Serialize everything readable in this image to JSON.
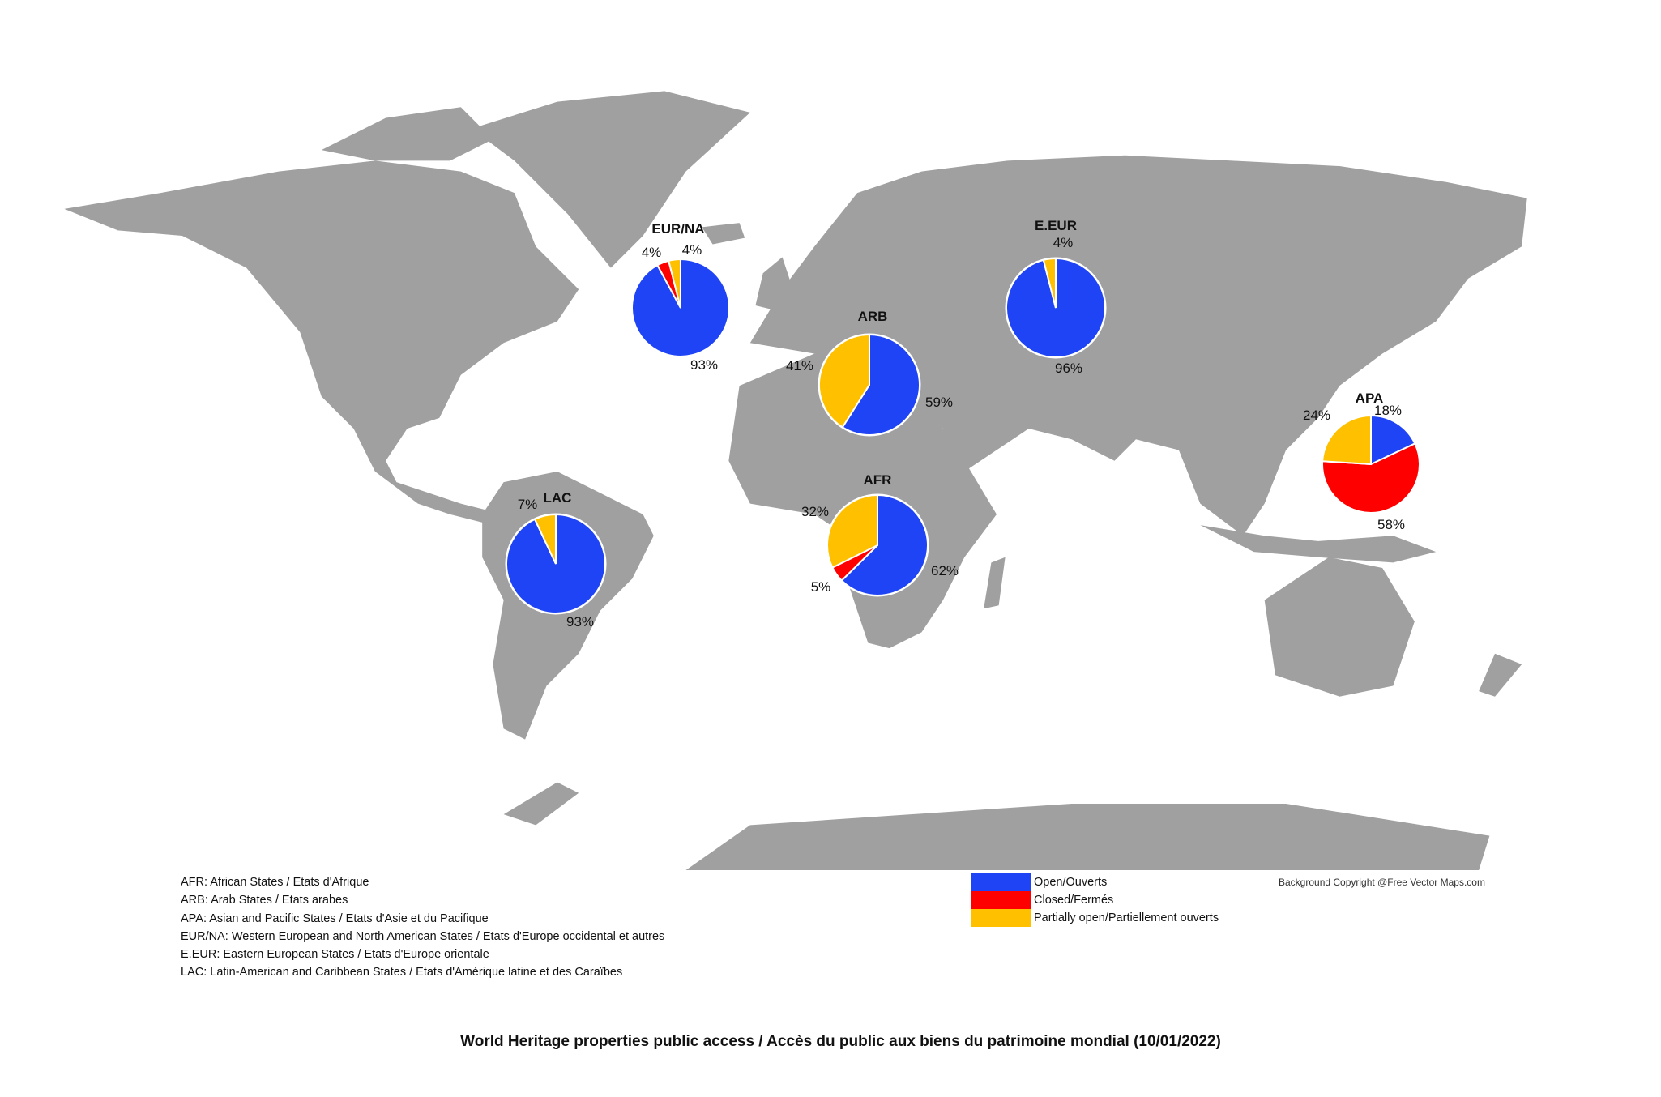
{
  "title": "World Heritage properties public access / Accès du public aux biens du patrimoine mondial (10/01/2022)",
  "copyright": "Background Copyright @Free Vector Maps.com",
  "colors": {
    "open": "#1f44f5",
    "closed": "#ff0000",
    "partial": "#ffc000",
    "land": "#a0a0a0"
  },
  "legend": [
    {
      "key": "open",
      "label": "Open/Ouverts"
    },
    {
      "key": "closed",
      "label": "Closed/Fermés"
    },
    {
      "key": "partial",
      "label": "Partially open/Partiellement ouverts"
    }
  ],
  "abbreviations": [
    "AFR: African States / Etats d'Afrique",
    "ARB: Arab States / Etats arabes",
    "APA: Asian and Pacific States / Etats d'Asie et du Pacifique",
    "EUR/NA: Western European and North American States / Etats d'Europe occidental et autres",
    "E.EUR: Eastern European States / Etats d'Europe orientale",
    "LAC: Latin-American and Caribbean States / Etats d'Amérique latine et des Caraïbes"
  ],
  "chart_data": {
    "type": "pie",
    "categories": [
      "Open/Ouverts",
      "Closed/Fermés",
      "Partially open/Partiellement ouverts"
    ],
    "series": [
      {
        "name": "EUR/NA",
        "values": [
          93,
          4,
          4
        ],
        "labels": [
          "93%",
          "4%",
          "4%"
        ]
      },
      {
        "name": "ARB",
        "values": [
          59,
          0,
          41
        ],
        "labels": [
          "59%",
          "",
          "41%"
        ]
      },
      {
        "name": "E.EUR",
        "values": [
          96,
          0,
          4
        ],
        "labels": [
          "96%",
          "",
          "4%"
        ]
      },
      {
        "name": "APA",
        "values": [
          18,
          58,
          24
        ],
        "labels": [
          "18%",
          "58%",
          "24%"
        ]
      },
      {
        "name": "AFR",
        "values": [
          62,
          5,
          32
        ],
        "labels": [
          "62%",
          "5%",
          "32%"
        ]
      },
      {
        "name": "LAC",
        "values": [
          93,
          0,
          7
        ],
        "labels": [
          "93%",
          "",
          "7%"
        ]
      }
    ]
  }
}
